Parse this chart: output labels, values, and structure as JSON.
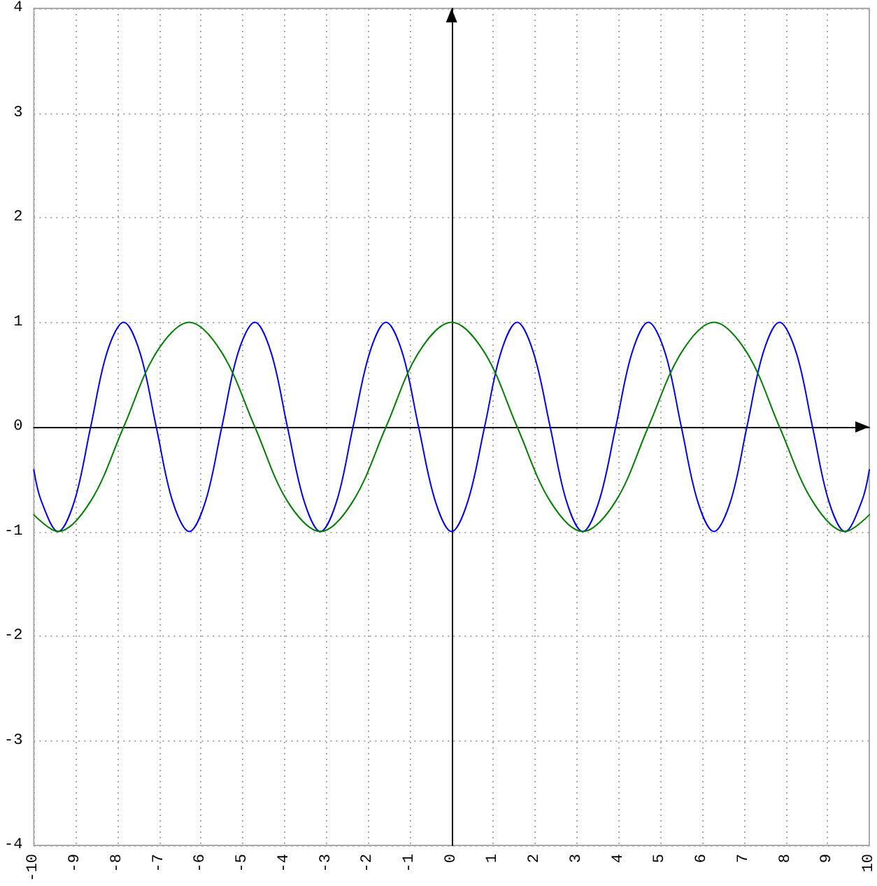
{
  "chart_data": {
    "type": "line",
    "marker": "none",
    "grid": true,
    "xlim": [
      -10,
      10
    ],
    "xticks": [
      -10,
      -9,
      -8,
      -7,
      -6,
      -5,
      -4,
      -3,
      -2,
      -1,
      0,
      1,
      2,
      3,
      4,
      5,
      6,
      7,
      8,
      9,
      10
    ],
    "ylim": [
      -4,
      4
    ],
    "yticks": [
      -4,
      -3,
      -2,
      -1,
      0,
      1,
      2,
      3,
      4
    ],
    "series": [
      {
        "color": "#0000ff",
        "x": [
          -10,
          -9.82,
          -9.42,
          -9.03,
          -8.64,
          -8.25,
          -7.85,
          -7.46,
          -7.07,
          -6.68,
          -6.28,
          -5.89,
          -5.5,
          -5.11,
          -4.71,
          -4.32,
          -3.93,
          -3.53,
          -3.14,
          -2.75,
          -2.36,
          -1.96,
          -1.57,
          -1.18,
          -0.79,
          -0.39,
          0,
          0.39,
          0.79,
          1.18,
          1.57,
          1.96,
          2.36,
          2.75,
          3.14,
          3.53,
          3.93,
          4.32,
          4.71,
          5.11,
          5.5,
          5.89,
          6.28,
          6.68,
          7.07,
          7.46,
          7.85,
          8.25,
          8.64,
          9.03,
          9.42,
          9.82,
          10
        ],
        "values": [
          -0.41,
          -0.71,
          -1,
          -0.71,
          0,
          0.71,
          1,
          0.71,
          0,
          -0.71,
          -1,
          -0.71,
          0,
          0.71,
          1,
          0.71,
          0,
          -0.71,
          -1,
          -0.71,
          0,
          0.71,
          1,
          0.71,
          0,
          -0.71,
          -1,
          -0.71,
          0,
          0.71,
          1,
          0.71,
          0,
          -0.71,
          -1,
          -0.71,
          0,
          0.71,
          1,
          0.71,
          0,
          -0.71,
          -1,
          -0.71,
          0,
          0.71,
          1,
          0.71,
          0,
          -0.71,
          -1,
          -0.71,
          -0.41
        ]
      },
      {
        "color": "#008000",
        "x": [
          -10,
          -9.42,
          -8.64,
          -7.85,
          -7.07,
          -6.28,
          -5.5,
          -4.71,
          -3.93,
          -3.14,
          -2.36,
          -1.57,
          -0.79,
          0,
          0.79,
          1.57,
          2.36,
          3.14,
          3.93,
          4.71,
          5.5,
          6.28,
          7.07,
          7.85,
          8.64,
          9.42,
          10
        ],
        "values": [
          -0.84,
          -1,
          -0.71,
          0,
          0.71,
          1,
          0.71,
          0,
          -0.71,
          -1,
          -0.71,
          0,
          0.71,
          1,
          0.71,
          0,
          -0.71,
          -1,
          -0.71,
          0,
          0.71,
          1,
          0.71,
          0,
          -0.71,
          -1,
          -0.84
        ]
      }
    ]
  }
}
